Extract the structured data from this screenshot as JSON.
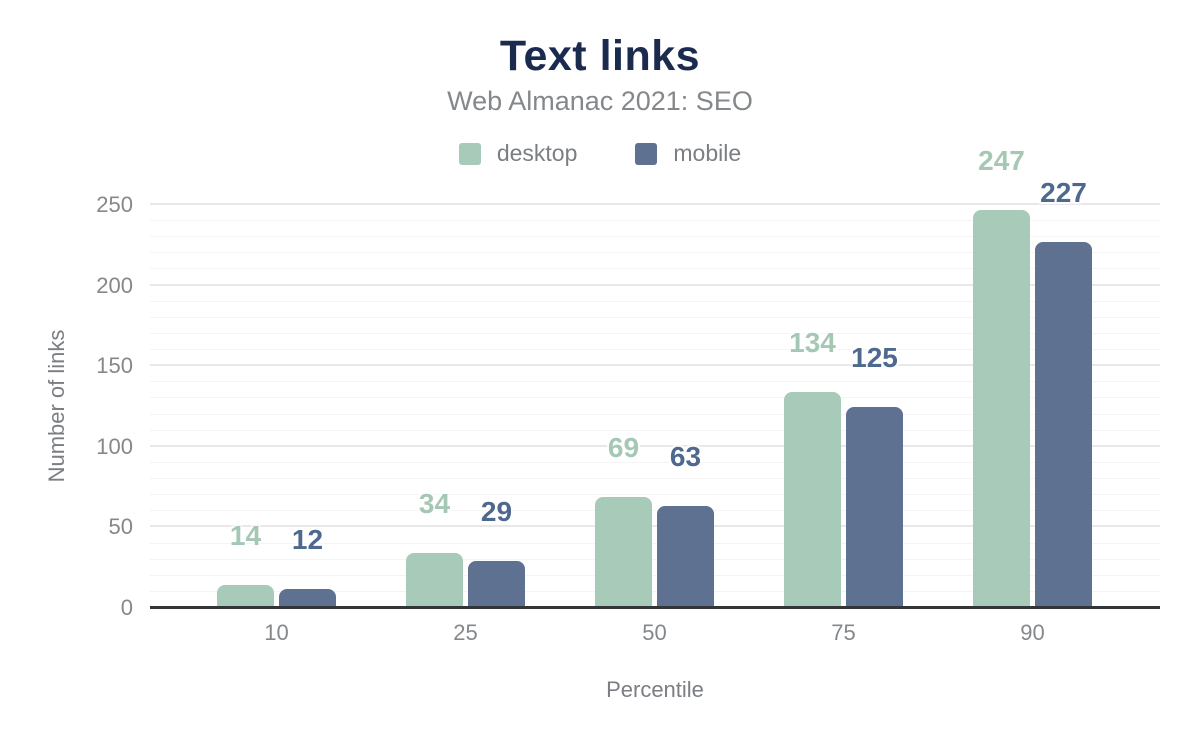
{
  "title": "Text links",
  "subtitle": "Web Almanac 2021: SEO",
  "axes": {
    "x_title": "Percentile",
    "y_title": "Number of links"
  },
  "colors": {
    "title": "#1b2b4e",
    "subtitle_gray": "#85888b",
    "axis_gray": "#7b7e82",
    "baseline": "#333639",
    "desktop": "#a8cab9",
    "mobile": "#5f7190",
    "desktop_label": "#a4c8b3",
    "mobile_label": "#4e688e"
  },
  "chart_data": {
    "type": "bar",
    "title": "Text links",
    "subtitle": "Web Almanac 2021: SEO",
    "categories": [
      "10",
      "25",
      "50",
      "75",
      "90"
    ],
    "series": [
      {
        "name": "desktop",
        "color": "#a8cab9",
        "label_color": "#a4c8b3",
        "values": [
          14,
          34,
          69,
          134,
          247
        ]
      },
      {
        "name": "mobile",
        "color": "#5f7190",
        "label_color": "#4e688e",
        "values": [
          12,
          29,
          63,
          125,
          227
        ]
      }
    ],
    "xlabel": "Percentile",
    "ylabel": "Number of links",
    "ylim": [
      0,
      250
    ],
    "yticks": [
      0,
      50,
      100,
      150,
      200,
      250
    ],
    "grid": {
      "minor_step": 10,
      "major_step": 50,
      "orientation": "horizontal"
    },
    "legend_position": "top",
    "bar_labels_shown": true
  }
}
